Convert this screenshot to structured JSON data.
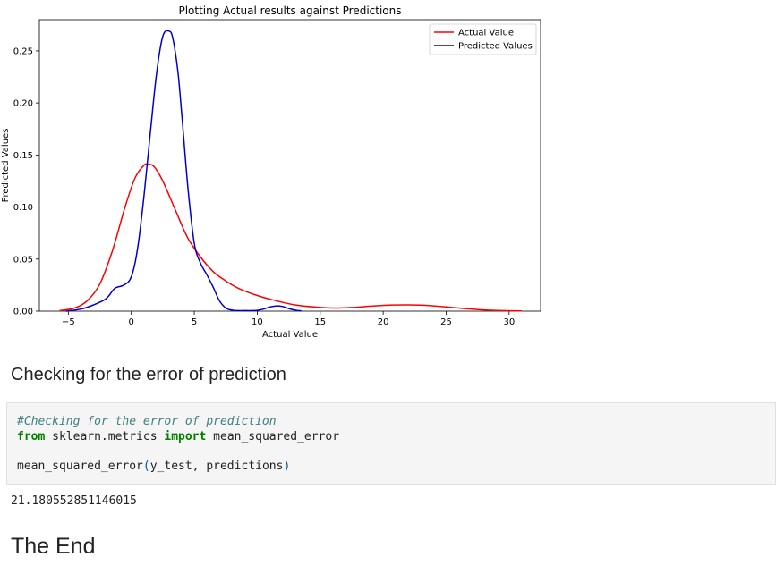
{
  "chart_data": {
    "type": "line",
    "title": "Plotting Actual results against Predictions",
    "xlabel": "Actual Value",
    "ylabel": "Predicted Values",
    "xlim": [
      -7.3,
      32.5
    ],
    "ylim": [
      0,
      0.28
    ],
    "xticks": [
      -5,
      0,
      5,
      10,
      15,
      20,
      25,
      30
    ],
    "xtick_labels": [
      "−5",
      "0",
      "5",
      "10",
      "15",
      "20",
      "25",
      "30"
    ],
    "yticks": [
      0.0,
      0.05,
      0.1,
      0.15,
      0.2,
      0.25
    ],
    "ytick_labels": [
      "0.00",
      "0.05",
      "0.10",
      "0.15",
      "0.20",
      "0.25"
    ],
    "grid": false,
    "legend": "top-right",
    "series": [
      {
        "name": "Actual Value",
        "color": "#ff0000",
        "x": [
          -5.7,
          -4.5,
          -3.5,
          -2.5,
          -1.5,
          -0.5,
          0.3,
          1.0,
          1.3,
          1.8,
          2.5,
          3.5,
          4.5,
          5.5,
          6.5,
          7.5,
          8.5,
          10.0,
          11.5,
          13.0,
          14.5,
          16.0,
          17.5,
          19.0,
          20.5,
          22.0,
          23.5,
          25.0,
          26.5,
          28.0,
          29.5,
          31.0
        ],
        "y": [
          0.0005,
          0.003,
          0.01,
          0.026,
          0.058,
          0.1,
          0.128,
          0.14,
          0.141,
          0.139,
          0.125,
          0.097,
          0.07,
          0.052,
          0.038,
          0.029,
          0.022,
          0.015,
          0.01,
          0.006,
          0.004,
          0.003,
          0.0035,
          0.0048,
          0.0058,
          0.006,
          0.0055,
          0.004,
          0.0025,
          0.0012,
          0.0005,
          0.0002
        ]
      },
      {
        "name": "Predicted Values",
        "color": "#0000cc",
        "x": [
          -5.2,
          -4.0,
          -3.0,
          -2.0,
          -1.3,
          -0.6,
          0.0,
          0.5,
          1.0,
          1.5,
          2.0,
          2.5,
          3.0,
          3.3,
          3.7,
          4.0,
          4.5,
          5.0,
          5.5,
          6.0,
          6.5,
          7.0,
          7.5,
          8.0,
          8.5,
          9.0,
          9.5,
          10.0,
          10.5,
          11.0,
          11.5,
          12.0,
          12.5,
          13.0,
          13.5
        ],
        "y": [
          0.0,
          0.002,
          0.006,
          0.012,
          0.022,
          0.025,
          0.033,
          0.06,
          0.11,
          0.17,
          0.228,
          0.264,
          0.269,
          0.262,
          0.23,
          0.19,
          0.118,
          0.065,
          0.046,
          0.035,
          0.023,
          0.01,
          0.003,
          0.001,
          0.0005,
          0.0005,
          0.0005,
          0.0008,
          0.002,
          0.004,
          0.005,
          0.0045,
          0.0025,
          0.001,
          0.0002
        ]
      }
    ]
  },
  "heading1": "Checking for the error of prediction",
  "code": {
    "comment": "#Checking for the error of prediction",
    "kw_from": "from",
    "module": " sklearn.metrics ",
    "kw_import": "import",
    "imported": " mean_squared_error",
    "call_name": "mean_squared_error",
    "paren_open": "(",
    "call_args": "y_test, predictions",
    "paren_close": ")"
  },
  "output": "21.180552851146015",
  "heading2": "The End"
}
